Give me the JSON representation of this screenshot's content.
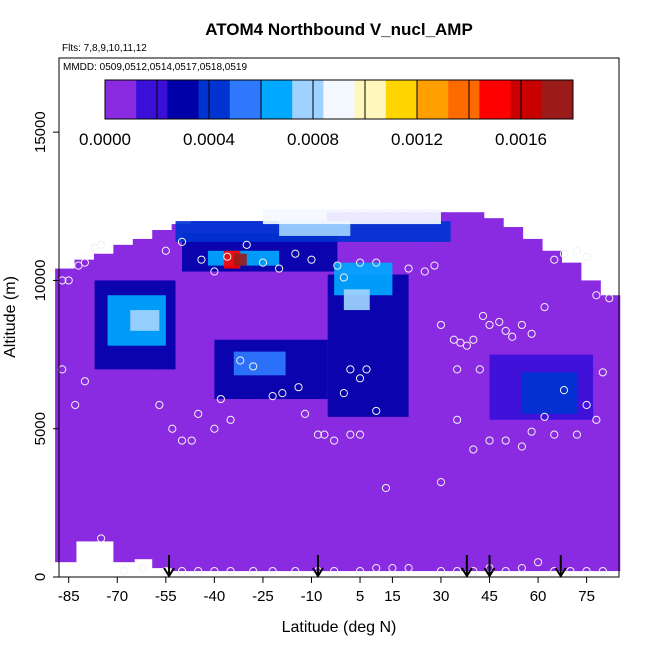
{
  "chart_data": {
    "type": "heatmap",
    "title": "ATOM4 Northbound V_nucl_AMP",
    "flights_text": "Flts: 7,8,9,10,11,12",
    "dates_text": "MMDD: 0509,0512,0514,0517,0518,0519",
    "xlabel": "Latitude (deg N)",
    "ylabel": "Altitude (m)",
    "xlim": [
      -88,
      85
    ],
    "ylim": [
      0,
      17500
    ],
    "x_ticks": [
      -85,
      -70,
      -55,
      -40,
      -25,
      -10,
      5,
      15,
      30,
      45,
      60,
      75
    ],
    "x_tick_labels": [
      "-85",
      "-70",
      "-55",
      "-40",
      "-25",
      "-10",
      "5",
      "15",
      "30",
      "45",
      "60",
      "75"
    ],
    "y_ticks": [
      0,
      5000,
      10000,
      15000
    ],
    "y_tick_labels": [
      "0",
      "5000",
      "10000",
      "15000"
    ],
    "colorbar": {
      "range": [
        0,
        0.0018
      ],
      "tick_values": [
        0,
        0.0004,
        0.0008,
        0.0012,
        0.0016
      ],
      "tick_labels": [
        "0.0000",
        "0.0004",
        "0.0008",
        "0.0012",
        "0.0016"
      ],
      "colors": [
        "#8a2be2",
        "#3a10d8",
        "#0000a8",
        "#0033d0",
        "#2f79ff",
        "#00a8ff",
        "#9fd2ff",
        "#f4f8ff",
        "#fff7bb",
        "#ffd400",
        "#ffa000",
        "#ff6a00",
        "#ff0000",
        "#c80000",
        "#9b1b1b"
      ]
    },
    "background_color": "#8a2be2",
    "field_columns": [
      {
        "lat": -86,
        "bot": 500,
        "top": 10400
      },
      {
        "lat": -80,
        "bot": 1200,
        "top": 10700
      },
      {
        "lat": -74,
        "bot": 1200,
        "top": 10900
      },
      {
        "lat": -68,
        "bot": 500,
        "top": 11200
      },
      {
        "lat": -62,
        "bot": 600,
        "top": 11400
      },
      {
        "lat": -56,
        "bot": 300,
        "top": 11700
      },
      {
        "lat": -50,
        "bot": 200,
        "top": 11900
      },
      {
        "lat": -44,
        "bot": 200,
        "top": 12000
      },
      {
        "lat": -38,
        "bot": 200,
        "top": 12000
      },
      {
        "lat": -32,
        "bot": 200,
        "top": 12000
      },
      {
        "lat": -26,
        "bot": 200,
        "top": 12000
      },
      {
        "lat": -20,
        "bot": 200,
        "top": 12000
      },
      {
        "lat": -14,
        "bot": 200,
        "top": 12000
      },
      {
        "lat": -8,
        "bot": 200,
        "top": 12000
      },
      {
        "lat": -2,
        "bot": 200,
        "top": 12300
      },
      {
        "lat": 4,
        "bot": 200,
        "top": 12300
      },
      {
        "lat": 10,
        "bot": 200,
        "top": 12300
      },
      {
        "lat": 16,
        "bot": 200,
        "top": 12300
      },
      {
        "lat": 22,
        "bot": 200,
        "top": 12300
      },
      {
        "lat": 28,
        "bot": 200,
        "top": 12300
      },
      {
        "lat": 34,
        "bot": 200,
        "top": 12300
      },
      {
        "lat": 40,
        "bot": 200,
        "top": 12300
      },
      {
        "lat": 46,
        "bot": 200,
        "top": 12100
      },
      {
        "lat": 52,
        "bot": 200,
        "top": 11800
      },
      {
        "lat": 58,
        "bot": 200,
        "top": 11400
      },
      {
        "lat": 64,
        "bot": 200,
        "top": 11000
      },
      {
        "lat": 70,
        "bot": 200,
        "top": 10600
      },
      {
        "lat": 76,
        "bot": 200,
        "top": 10000
      },
      {
        "lat": 82,
        "bot": 200,
        "top": 9500
      }
    ],
    "features": [
      {
        "lat_min": -77,
        "lat_max": -52,
        "alt_min": 7000,
        "alt_max": 10000,
        "value": 0.00022
      },
      {
        "lat_min": -73,
        "lat_max": -55,
        "alt_min": 7800,
        "alt_max": 9500,
        "value": 0.0006
      },
      {
        "lat_min": -66,
        "lat_max": -57,
        "alt_min": 8300,
        "alt_max": 9000,
        "value": 0.00075
      },
      {
        "lat_min": -50,
        "lat_max": -2,
        "alt_min": 10300,
        "alt_max": 11600,
        "value": 0.00025
      },
      {
        "lat_min": -42,
        "lat_max": -20,
        "alt_min": 10500,
        "alt_max": 11000,
        "value": 0.0006
      },
      {
        "lat_min": -37,
        "lat_max": -32,
        "alt_min": 10400,
        "alt_max": 11000,
        "value": 0.0015
      },
      {
        "lat_min": -34,
        "lat_max": -30,
        "alt_min": 10500,
        "alt_max": 10900,
        "value": 0.0018
      },
      {
        "lat_min": -52,
        "lat_max": 33,
        "alt_min": 11300,
        "alt_max": 12000,
        "value": 0.0004
      },
      {
        "lat_min": -20,
        "lat_max": 2,
        "alt_min": 11500,
        "alt_max": 12000,
        "value": 0.0008
      },
      {
        "lat_min": -25,
        "lat_max": 30,
        "alt_min": 11900,
        "alt_max": 12400,
        "value": 0.00095
      },
      {
        "lat_min": -40,
        "lat_max": -5,
        "alt_min": 6000,
        "alt_max": 8000,
        "value": 0.0003
      },
      {
        "lat_min": -34,
        "lat_max": -18,
        "alt_min": 6800,
        "alt_max": 7600,
        "value": 0.0005
      },
      {
        "lat_min": -5,
        "lat_max": 20,
        "alt_min": 5400,
        "alt_max": 10200,
        "value": 0.0002
      },
      {
        "lat_min": -3,
        "lat_max": 15,
        "alt_min": 9500,
        "alt_max": 10600,
        "value": 0.0006
      },
      {
        "lat_min": 0,
        "lat_max": 8,
        "alt_min": 9000,
        "alt_max": 9700,
        "value": 0.0008
      },
      {
        "lat_min": 45,
        "lat_max": 77,
        "alt_min": 5300,
        "alt_max": 7500,
        "value": 0.00018
      },
      {
        "lat_min": 55,
        "lat_max": 72,
        "alt_min": 5500,
        "alt_max": 6900,
        "value": 0.00035
      }
    ],
    "sample_points": [
      [
        -87,
        10000
      ],
      [
        -85,
        10000
      ],
      [
        -82,
        10500
      ],
      [
        -80,
        10600
      ],
      [
        -77,
        11100
      ],
      [
        -75,
        11200
      ],
      [
        -87,
        7000
      ],
      [
        -83,
        5800
      ],
      [
        -80,
        6600
      ],
      [
        -75,
        1300
      ],
      [
        -57,
        5800
      ],
      [
        -53,
        5000
      ],
      [
        -50,
        4600
      ],
      [
        -47,
        4600
      ],
      [
        -45,
        5500
      ],
      [
        -40,
        5000
      ],
      [
        -38,
        6000
      ],
      [
        -35,
        5300
      ],
      [
        -32,
        7300
      ],
      [
        -28,
        7100
      ],
      [
        -22,
        6100
      ],
      [
        -19,
        6200
      ],
      [
        -14,
        6400
      ],
      [
        -12,
        5500
      ],
      [
        -8,
        4800
      ],
      [
        -6,
        4800
      ],
      [
        -3,
        4600
      ],
      [
        0,
        6200
      ],
      [
        2,
        7000
      ],
      [
        5,
        6700
      ],
      [
        7,
        7000
      ],
      [
        10,
        5600
      ],
      [
        13,
        3000
      ],
      [
        2,
        4800
      ],
      [
        5,
        4800
      ],
      [
        -55,
        11000
      ],
      [
        -50,
        11300
      ],
      [
        -44,
        10700
      ],
      [
        -40,
        10300
      ],
      [
        -36,
        10800
      ],
      [
        -30,
        11200
      ],
      [
        -25,
        10600
      ],
      [
        -20,
        10400
      ],
      [
        -15,
        10900
      ],
      [
        -10,
        10700
      ],
      [
        -2,
        10500
      ],
      [
        0,
        10100
      ],
      [
        5,
        10600
      ],
      [
        10,
        10600
      ],
      [
        20,
        10400
      ],
      [
        25,
        10300
      ],
      [
        28,
        10500
      ],
      [
        30,
        8500
      ],
      [
        34,
        8000
      ],
      [
        36,
        7900
      ],
      [
        38,
        7800
      ],
      [
        40,
        8000
      ],
      [
        43,
        8800
      ],
      [
        45,
        8500
      ],
      [
        48,
        8600
      ],
      [
        50,
        8300
      ],
      [
        52,
        8100
      ],
      [
        55,
        8500
      ],
      [
        58,
        8200
      ],
      [
        62,
        9100
      ],
      [
        65,
        10700
      ],
      [
        68,
        10900
      ],
      [
        72,
        11000
      ],
      [
        75,
        10800
      ],
      [
        78,
        9500
      ],
      [
        82,
        9400
      ],
      [
        80,
        6900
      ],
      [
        78,
        5300
      ],
      [
        75,
        5800
      ],
      [
        72,
        4800
      ],
      [
        68,
        6300
      ],
      [
        65,
        4800
      ],
      [
        62,
        5400
      ],
      [
        58,
        4900
      ],
      [
        55,
        4400
      ],
      [
        50,
        4600
      ],
      [
        45,
        4600
      ],
      [
        40,
        4300
      ],
      [
        42,
        7000
      ],
      [
        35,
        5300
      ],
      [
        30,
        3200
      ],
      [
        35,
        7000
      ],
      [
        -68,
        200
      ],
      [
        -62,
        300
      ],
      [
        -55,
        200
      ],
      [
        -50,
        200
      ],
      [
        -45,
        200
      ],
      [
        -40,
        200
      ],
      [
        -35,
        200
      ],
      [
        -28,
        200
      ],
      [
        -22,
        200
      ],
      [
        -15,
        200
      ],
      [
        -8,
        200
      ],
      [
        -3,
        200
      ],
      [
        5,
        200
      ],
      [
        10,
        300
      ],
      [
        15,
        300
      ],
      [
        20,
        300
      ],
      [
        30,
        200
      ],
      [
        35,
        200
      ],
      [
        40,
        200
      ],
      [
        45,
        300
      ],
      [
        50,
        200
      ],
      [
        55,
        300
      ],
      [
        60,
        500
      ],
      [
        65,
        200
      ],
      [
        70,
        200
      ],
      [
        75,
        200
      ],
      [
        80,
        200
      ]
    ],
    "arrow_lats": [
      -54,
      -8,
      38,
      45,
      67
    ]
  }
}
